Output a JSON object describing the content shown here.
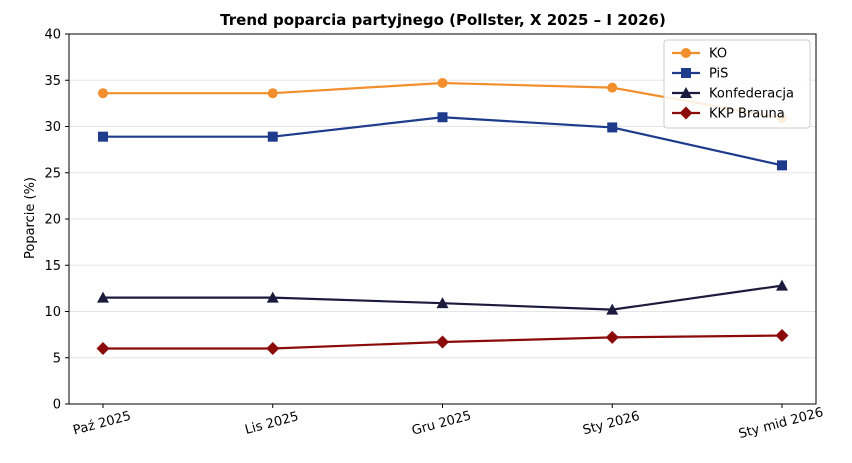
{
  "chart_data": {
    "type": "line",
    "title": "Trend poparcia partyjnego (Pollster, X 2025 – I 2026)",
    "xlabel": "",
    "ylabel": "Poparcie (%)",
    "categories": [
      "Paź 2025",
      "Lis 2025",
      "Gru 2025",
      "Sty 2026",
      "Sty mid 2026"
    ],
    "ylim": [
      0,
      40
    ],
    "yticks": [
      0,
      5,
      10,
      15,
      20,
      25,
      30,
      35,
      40
    ],
    "grid": true,
    "legend_position": "top-right",
    "series": [
      {
        "name": "KO",
        "color": "#f28e2b",
        "marker": "circle",
        "values": [
          33.6,
          33.6,
          34.7,
          34.2,
          30.9
        ]
      },
      {
        "name": "PiS",
        "color": "#1f3b8c",
        "marker": "square",
        "values": [
          28.9,
          28.9,
          31.0,
          29.9,
          25.8
        ]
      },
      {
        "name": "Konfederacja",
        "color": "#1c1a3d",
        "marker": "triangle",
        "values": [
          11.5,
          11.5,
          10.9,
          10.2,
          12.8
        ]
      },
      {
        "name": "KKP Brauna",
        "color": "#8b0a0a",
        "marker": "diamond",
        "values": [
          6.0,
          6.0,
          6.7,
          7.2,
          7.4
        ]
      }
    ]
  }
}
